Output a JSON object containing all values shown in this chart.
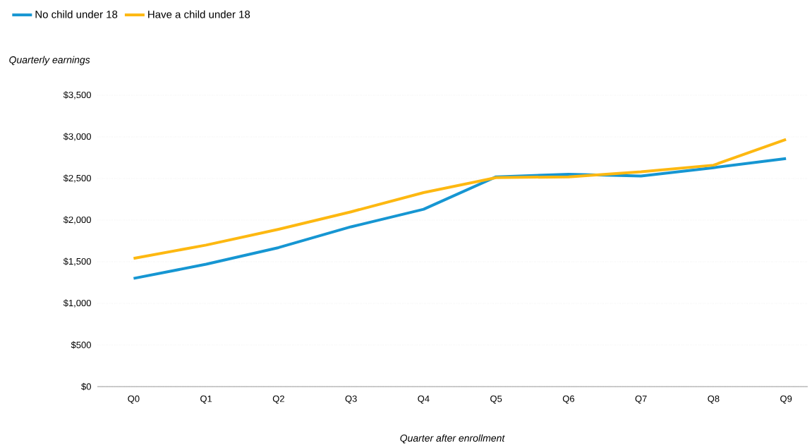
{
  "chart_data": {
    "type": "line",
    "xlabel": "Quarter after enrollment",
    "ylabel": "Quarterly earnings",
    "categories": [
      "Q0",
      "Q1",
      "Q2",
      "Q3",
      "Q4",
      "Q5",
      "Q6",
      "Q7",
      "Q8",
      "Q9"
    ],
    "series": [
      {
        "name": "No child under 18",
        "color": "#1696d2",
        "values": [
          1300,
          1470,
          1670,
          1920,
          2130,
          2520,
          2550,
          2530,
          2630,
          2740
        ]
      },
      {
        "name": "Have a child under 18",
        "color": "#fdb811",
        "values": [
          1540,
          1700,
          1890,
          2100,
          2330,
          2510,
          2520,
          2580,
          2660,
          2970
        ]
      }
    ],
    "ylim": [
      0,
      3500
    ],
    "yticks": [
      {
        "value": 0,
        "label": "$0"
      },
      {
        "value": 500,
        "label": "$500"
      },
      {
        "value": 1000,
        "label": "$1,000"
      },
      {
        "value": 1500,
        "label": "$1,500"
      },
      {
        "value": 2000,
        "label": "$2,000"
      },
      {
        "value": 2500,
        "label": "$2,500"
      },
      {
        "value": 3000,
        "label": "$3,000"
      },
      {
        "value": 3500,
        "label": "$3,500"
      }
    ],
    "grid": "y",
    "legend": "top left",
    "marker": "none",
    "line_style": "solid"
  }
}
